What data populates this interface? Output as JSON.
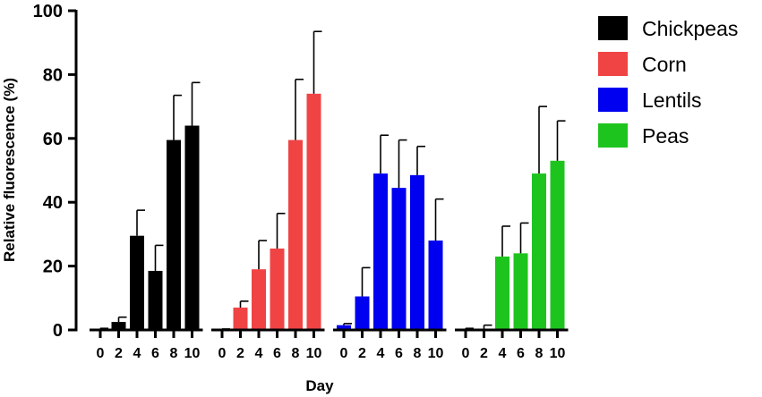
{
  "chart_data": {
    "type": "bar",
    "xlabel": "Day",
    "ylabel": "Relative fluorescence (%)",
    "ylim": [
      0,
      100
    ],
    "yticks": [
      0,
      20,
      40,
      60,
      80,
      100
    ],
    "grid": false,
    "legend_position": "top-right",
    "categories": [
      "0",
      "2",
      "4",
      "6",
      "8",
      "10"
    ],
    "series": [
      {
        "name": "Chickpeas",
        "color": "#000000",
        "values": [
          0,
          2.5,
          29.5,
          18.5,
          59.5,
          64
        ],
        "errors": [
          0.5,
          1.5,
          8,
          8,
          14,
          13.5
        ]
      },
      {
        "name": "Corn",
        "color": "#f04444",
        "values": [
          0,
          7,
          19,
          25.5,
          59.5,
          74
        ],
        "errors": [
          0.3,
          2,
          9,
          11,
          19,
          19.5
        ]
      },
      {
        "name": "Lentils",
        "color": "#0000f0",
        "values": [
          1.5,
          10.5,
          49,
          44.5,
          48.5,
          28
        ],
        "errors": [
          0.5,
          9,
          12,
          15,
          9,
          13
        ]
      },
      {
        "name": "Peas",
        "color": "#1ec41e",
        "values": [
          0,
          0,
          23,
          24,
          49,
          53
        ],
        "errors": [
          0.5,
          1.5,
          9.5,
          9.5,
          21,
          12.5
        ]
      }
    ]
  }
}
